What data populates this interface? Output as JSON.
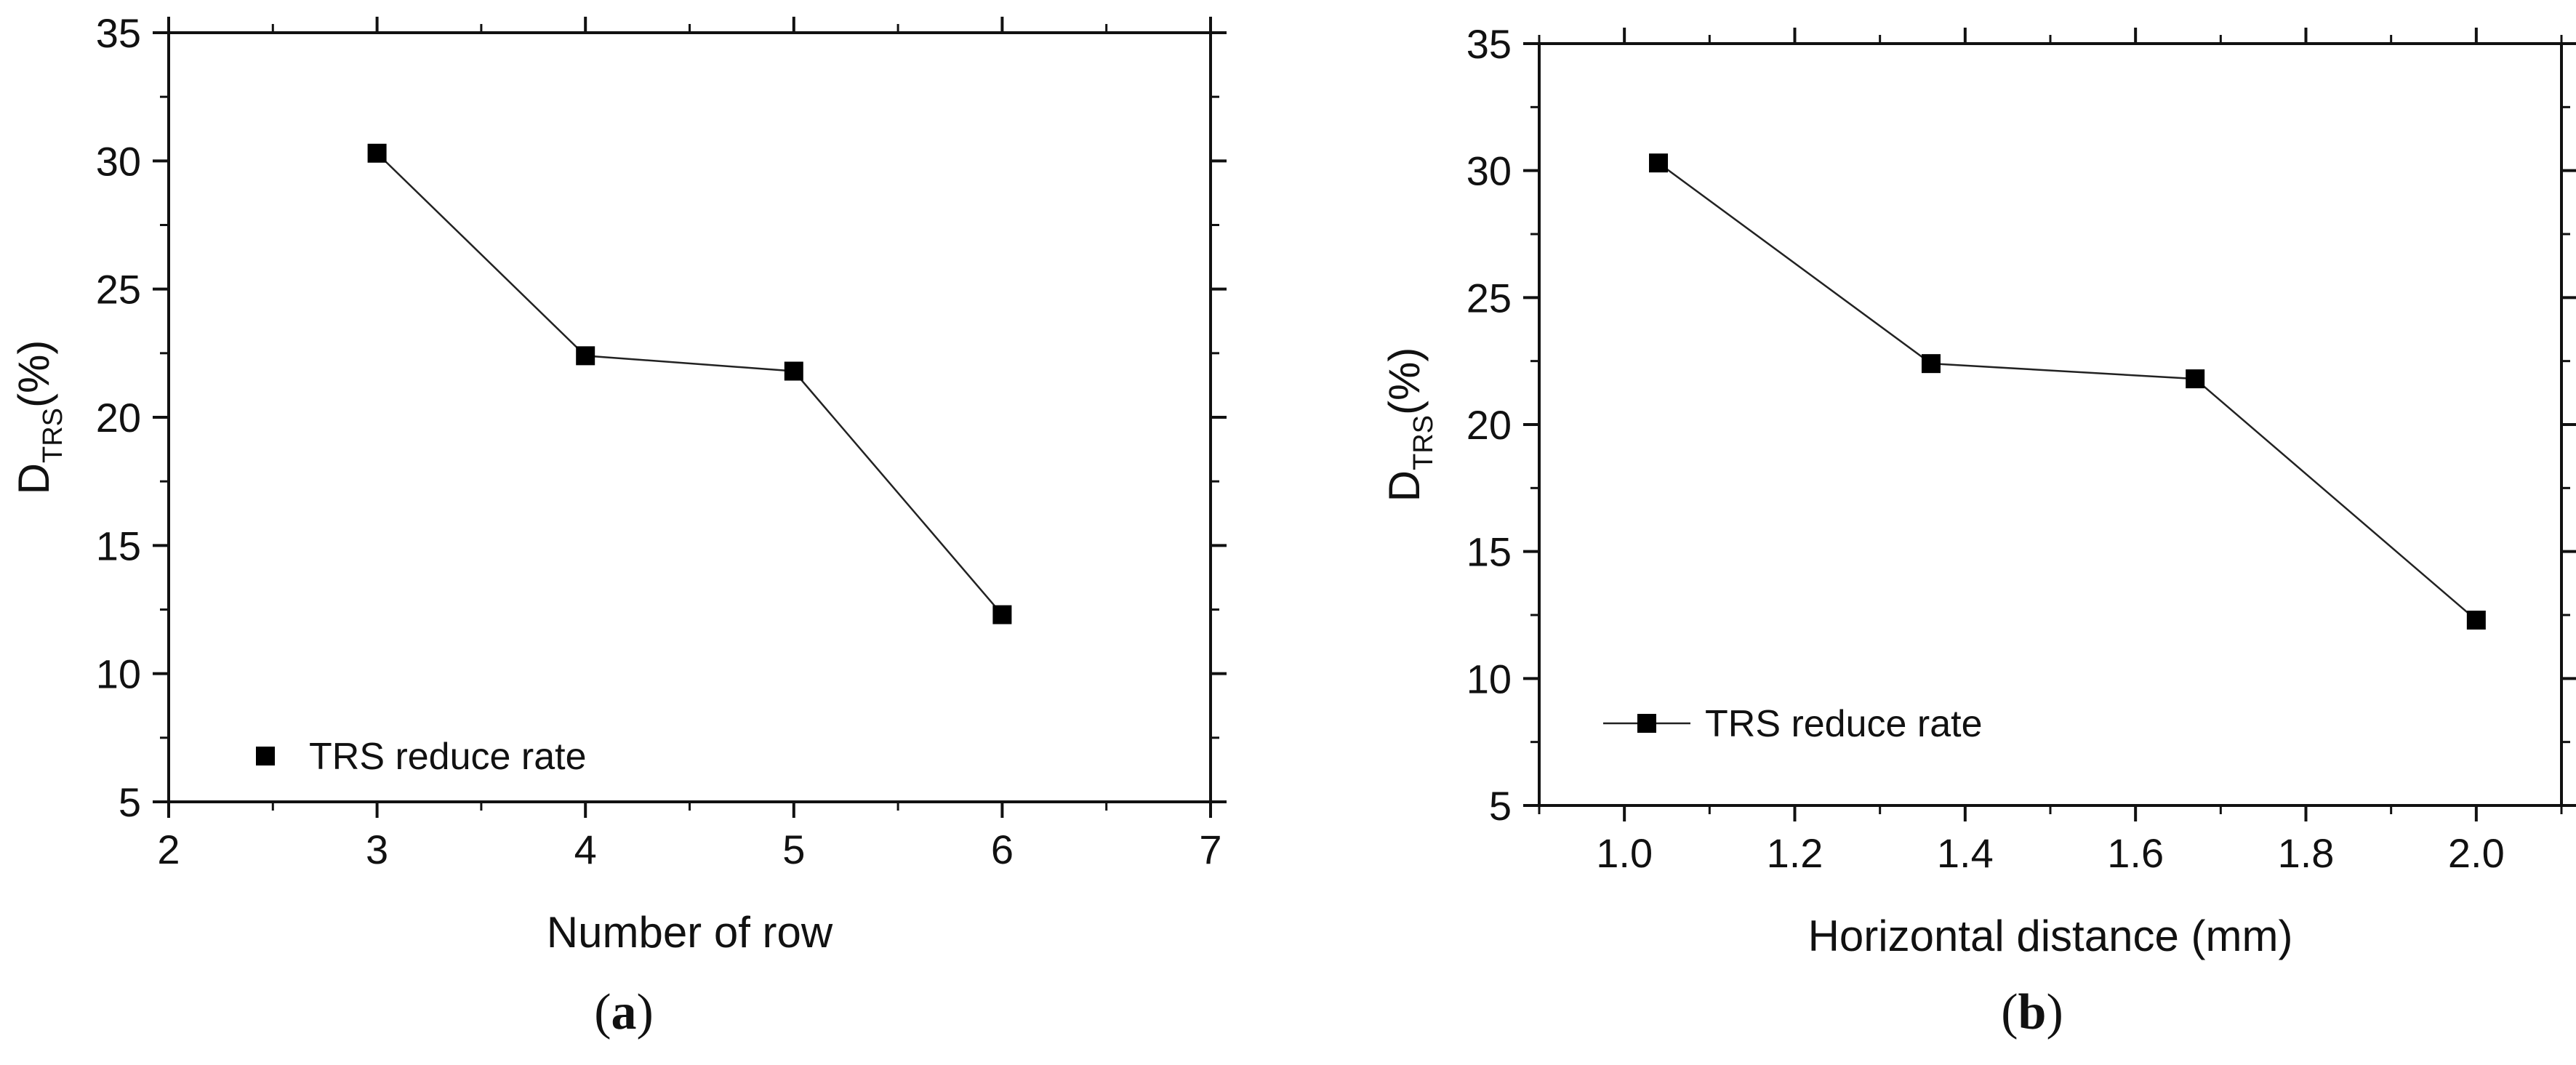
{
  "chart_data": [
    {
      "type": "line",
      "caption_letter": "a",
      "xlabel": "Number of row",
      "ylabel_main": "D",
      "ylabel_sub": "TRS",
      "ylabel_unit": "(%)",
      "xlim": [
        2,
        7
      ],
      "ylim": [
        5,
        35
      ],
      "xticks": [
        2,
        3,
        4,
        5,
        6,
        7
      ],
      "xtick_labels": [
        "2",
        "3",
        "4",
        "5",
        "6",
        "7"
      ],
      "yticks": [
        5,
        10,
        15,
        20,
        25,
        30,
        35
      ],
      "ytick_labels": [
        "5",
        "10",
        "15",
        "20",
        "25",
        "30",
        "35"
      ],
      "x_minor_step": 0.5,
      "y_minor_step": 2.5,
      "legend_position": "bottom-left",
      "legend_has_line": false,
      "series": [
        {
          "name": "TRS reduce rate",
          "x": [
            3,
            4,
            5,
            6
          ],
          "y": [
            30.3,
            22.4,
            21.8,
            12.3
          ],
          "marker": "square",
          "color": "#000000"
        }
      ]
    },
    {
      "type": "line",
      "caption_letter": "b",
      "xlabel": "Horizontal distance (mm)",
      "ylabel_main": "D",
      "ylabel_sub": "TRS",
      "ylabel_unit": "(%)",
      "xlim": [
        0.9,
        2.1
      ],
      "ylim": [
        5,
        35
      ],
      "xticks": [
        1.0,
        1.2,
        1.4,
        1.6,
        1.8,
        2.0
      ],
      "xtick_labels": [
        "1.0",
        "1.2",
        "1.4",
        "1.6",
        "1.8",
        "2.0"
      ],
      "yticks": [
        5,
        10,
        15,
        20,
        25,
        30,
        35
      ],
      "ytick_labels": [
        "5",
        "10",
        "15",
        "20",
        "25",
        "30",
        "35"
      ],
      "x_minor_step": 0.1,
      "y_minor_step": 2.5,
      "legend_position": "bottom-left",
      "legend_has_line": true,
      "series": [
        {
          "name": "TRS reduce rate",
          "x": [
            1.04,
            1.36,
            1.67,
            2.0
          ],
          "y": [
            30.3,
            22.4,
            21.8,
            12.3
          ],
          "marker": "square",
          "color": "#000000"
        }
      ]
    }
  ]
}
